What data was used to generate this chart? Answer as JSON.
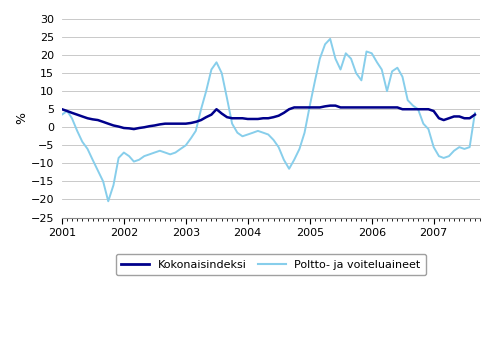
{
  "title": "",
  "ylabel": "%",
  "ylim": [
    -25,
    30
  ],
  "yticks": [
    -25,
    -20,
    -15,
    -10,
    -5,
    0,
    5,
    10,
    15,
    20,
    25,
    30
  ],
  "xtick_years": [
    2001,
    2002,
    2003,
    2004,
    2005,
    2006,
    2007
  ],
  "color_total": "#00008B",
  "color_fuel": "#87CEEB",
  "lw_total": 1.8,
  "lw_fuel": 1.4,
  "legend_labels": [
    "Kokonaisindeksi",
    "Poltto- ja voiteluaineet"
  ],
  "total_index": [
    5.0,
    4.5,
    4.0,
    3.5,
    3.0,
    2.5,
    2.2,
    2.0,
    1.5,
    1.0,
    0.5,
    0.2,
    -0.2,
    -0.3,
    -0.5,
    -0.2,
    0.0,
    0.3,
    0.5,
    0.8,
    1.0,
    1.0,
    1.0,
    1.0,
    1.0,
    1.2,
    1.5,
    2.0,
    2.8,
    3.5,
    5.0,
    3.8,
    2.8,
    2.5,
    2.5,
    2.5,
    2.3,
    2.3,
    2.3,
    2.5,
    2.5,
    2.8,
    3.2,
    4.0,
    5.0,
    5.5,
    5.5,
    5.5,
    5.5,
    5.5,
    5.5,
    5.8,
    6.0,
    6.0,
    5.5,
    5.5,
    5.5,
    5.5,
    5.5,
    5.5,
    5.5,
    5.5,
    5.5,
    5.5,
    5.5,
    5.5,
    5.0,
    5.0,
    5.0,
    5.0,
    5.0,
    5.0,
    4.5,
    2.5,
    2.0,
    2.5,
    3.0,
    3.0,
    2.5,
    2.5,
    3.5
  ],
  "fuel_index": [
    3.5,
    4.5,
    2.5,
    -1.0,
    -4.0,
    -6.0,
    -9.0,
    -12.0,
    -15.0,
    -20.5,
    -16.0,
    -8.5,
    -7.0,
    -8.0,
    -9.5,
    -9.0,
    -8.0,
    -7.5,
    -7.0,
    -6.5,
    -7.0,
    -7.5,
    -7.0,
    -6.0,
    -5.0,
    -3.0,
    -1.0,
    5.0,
    10.0,
    16.0,
    18.0,
    15.0,
    8.0,
    1.0,
    -1.5,
    -2.5,
    -2.0,
    -1.5,
    -1.0,
    -1.5,
    -2.0,
    -3.5,
    -5.5,
    -9.0,
    -11.5,
    -9.0,
    -6.0,
    -1.5,
    6.0,
    13.0,
    19.0,
    23.0,
    24.5,
    19.0,
    16.0,
    20.5,
    19.0,
    15.0,
    13.0,
    21.0,
    20.5,
    18.0,
    16.0,
    10.0,
    15.5,
    16.5,
    14.0,
    7.5,
    6.0,
    5.0,
    1.0,
    -0.5,
    -5.5,
    -8.0,
    -8.5,
    -8.0,
    -6.5,
    -5.5,
    -6.0,
    -5.5,
    4.0
  ]
}
